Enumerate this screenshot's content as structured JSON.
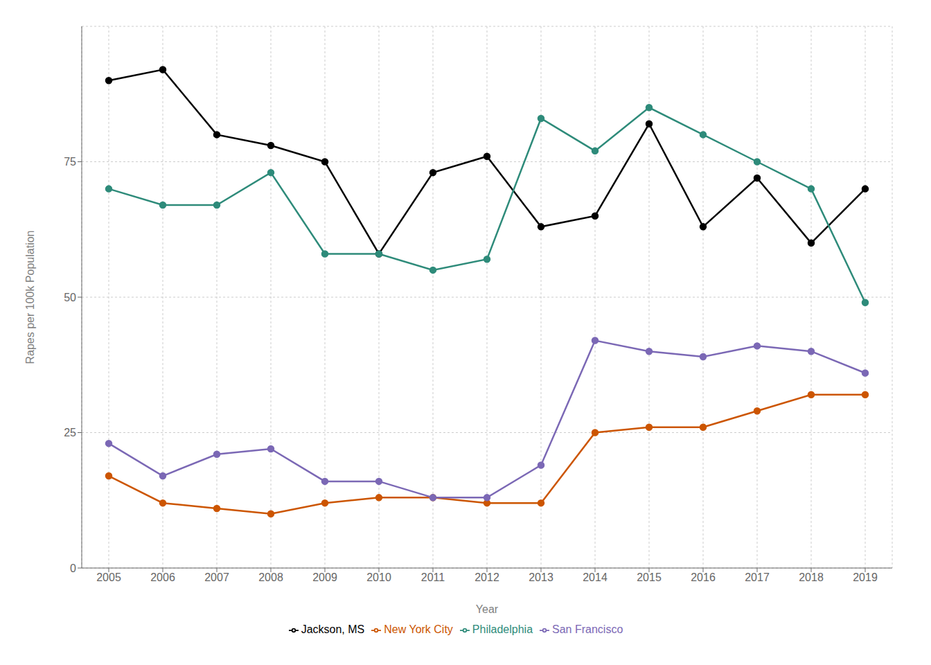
{
  "chart_data": {
    "type": "line",
    "x": [
      2005,
      2006,
      2007,
      2008,
      2009,
      2010,
      2011,
      2012,
      2013,
      2014,
      2015,
      2016,
      2017,
      2018,
      2019
    ],
    "xlabel": "Year",
    "ylabel": "Rapes per 100k Population",
    "xlim": [
      2004.5,
      2019.5
    ],
    "xticks": [
      2005,
      2006,
      2007,
      2008,
      2009,
      2010,
      2011,
      2012,
      2013,
      2014,
      2015,
      2016,
      2017,
      2018,
      2019
    ],
    "ylim": [
      0,
      100
    ],
    "yticks": [
      0,
      25,
      50,
      75
    ],
    "grid": true,
    "legend": "bottom",
    "marker": "circle",
    "series": [
      {
        "name": "Jackson, MS",
        "color": "#000000",
        "values": [
          90,
          92,
          80,
          78,
          75,
          58,
          73,
          76,
          63,
          65,
          82,
          63,
          72,
          60,
          70
        ]
      },
      {
        "name": "New York City",
        "color": "#cc5500",
        "values": [
          17,
          12,
          11,
          10,
          12,
          13,
          13,
          12,
          12,
          25,
          26,
          26,
          29,
          32,
          32
        ]
      },
      {
        "name": "Philadelphia",
        "color": "#2e8b7a",
        "values": [
          70,
          67,
          67,
          73,
          58,
          58,
          55,
          57,
          83,
          77,
          85,
          80,
          75,
          70,
          49
        ]
      },
      {
        "name": "San Francisco",
        "color": "#7b68b5",
        "values": [
          23,
          17,
          21,
          22,
          16,
          16,
          13,
          13,
          19,
          42,
          40,
          39,
          41,
          40,
          36
        ]
      }
    ]
  }
}
